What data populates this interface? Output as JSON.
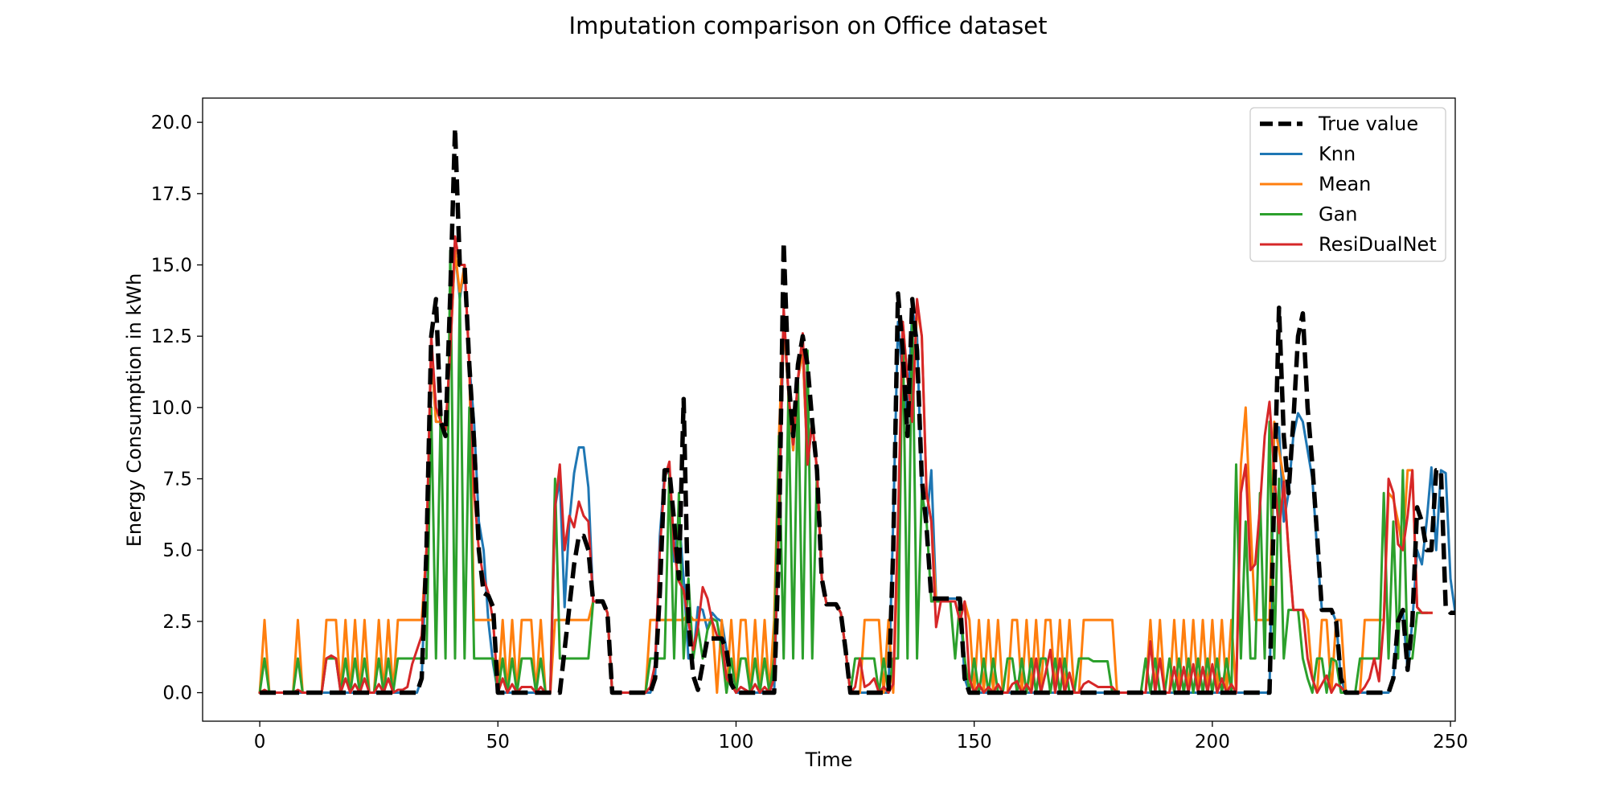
{
  "chart_data": {
    "type": "line",
    "title": "Imputation comparison on Office dataset",
    "xlabel": "Time",
    "ylabel": "Energy Consumption in kWh",
    "xlim": [
      -12,
      251
    ],
    "ylim": [
      -1.0,
      20.85
    ],
    "xticks": [
      0,
      50,
      100,
      150,
      200,
      250
    ],
    "yticks": [
      0.0,
      2.5,
      5.0,
      7.5,
      10.0,
      12.5,
      15.0,
      17.5,
      20.0
    ],
    "xtick_labels": [
      "0",
      "50",
      "100",
      "150",
      "200",
      "250"
    ],
    "ytick_labels": [
      "0.0",
      "2.5",
      "5.0",
      "7.5",
      "10.0",
      "12.5",
      "15.0",
      "17.5",
      "20.0"
    ],
    "grid": false,
    "legend_position": "top-right",
    "series": [
      {
        "name": "True value",
        "color": "#000000",
        "dash": true,
        "width": 5.5,
        "values": [
          0,
          0,
          0,
          0,
          0,
          0,
          0,
          0,
          0,
          0,
          0,
          0,
          0,
          0,
          0,
          0,
          0,
          0,
          0,
          0,
          0,
          0,
          0,
          0,
          0,
          0,
          0,
          0,
          0,
          0,
          0,
          0,
          0,
          0,
          0.5,
          5,
          12.5,
          13.8,
          9.5,
          9,
          14,
          19.8,
          15,
          15,
          11.5,
          8.8,
          5,
          3.5,
          3.4,
          3,
          0,
          0,
          0,
          0,
          0,
          0,
          0,
          0,
          0,
          0,
          0,
          0,
          0,
          0,
          1.5,
          3,
          4.5,
          5.5,
          5.5,
          5,
          3.2,
          3.2,
          3.2,
          2.8,
          0,
          0,
          0,
          0,
          0,
          0,
          0,
          0,
          0,
          0.5,
          3.5,
          7.8,
          7.8,
          6,
          4,
          10.3,
          2.5,
          0.6,
          0.1,
          1,
          1.9,
          1.9,
          1.9,
          1.9,
          1.5,
          0.3,
          0,
          0,
          0,
          0,
          0,
          0,
          0,
          0,
          0,
          5,
          15.8,
          11,
          9,
          11.5,
          12.5,
          11.5,
          9.5,
          7.8,
          4,
          3.1,
          3.1,
          3.1,
          2.8,
          1.5,
          0,
          0,
          0,
          0,
          0,
          0,
          0,
          0,
          0,
          5,
          14,
          12,
          9,
          13.8,
          12,
          7.5,
          5.8,
          3.3,
          3.3,
          3.3,
          3.3,
          3.3,
          3.3,
          3.3,
          0.5,
          0,
          0,
          0,
          0,
          0,
          0,
          0,
          0,
          0,
          0,
          0,
          0,
          0,
          0,
          0,
          0,
          0,
          0,
          0,
          0,
          0,
          0,
          0,
          0,
          0,
          0,
          0,
          0,
          0,
          0,
          0,
          0,
          0,
          0,
          0,
          0,
          0,
          0,
          0,
          0,
          0,
          0,
          0,
          0,
          0,
          0,
          0,
          0,
          0,
          0,
          0,
          0,
          0,
          0,
          0,
          0,
          0,
          0,
          0,
          0,
          0,
          0,
          0,
          0,
          7,
          13.5,
          9,
          7,
          9.5,
          12.5,
          13.3,
          10,
          8,
          5.5,
          2.9,
          2.9,
          2.9,
          2.5,
          0.5,
          0,
          0,
          0,
          0,
          0,
          0,
          0,
          0,
          0,
          0,
          0.5,
          2.5,
          2.9,
          0.8,
          2.5,
          6.5,
          6,
          5,
          5,
          7.8,
          7.8,
          3,
          2.8,
          2.8,
          2.8
        ]
      },
      {
        "name": "Knn",
        "color": "#1f77b4",
        "dash": false,
        "width": 3,
        "values": [
          0,
          0,
          0,
          0,
          0,
          0,
          0,
          0,
          0,
          0,
          0,
          0,
          0,
          0,
          0,
          0,
          0,
          0,
          0,
          0,
          0,
          0,
          0,
          0,
          0,
          0,
          0,
          0,
          0,
          0,
          0,
          0,
          0,
          0,
          0.5,
          5,
          12,
          9.5,
          9.5,
          9.2,
          12,
          15.5,
          13.8,
          15,
          11.5,
          9.5,
          6,
          5,
          2.5,
          1,
          0,
          0,
          0,
          0,
          0,
          0,
          0,
          0,
          0,
          0,
          0,
          0,
          6.5,
          7.5,
          3,
          6,
          7.7,
          8.6,
          8.6,
          7.2,
          3.2,
          3.2,
          3.2,
          2.8,
          0,
          0,
          0,
          0,
          0,
          0,
          0,
          0,
          0,
          0.5,
          5.5,
          7.7,
          7.7,
          4.6,
          6.2,
          4,
          1.2,
          1.2,
          3,
          2.9,
          2.2,
          2.8,
          2.6,
          2.5,
          1.5,
          0.3,
          0,
          0,
          0,
          0,
          0,
          0,
          0,
          0,
          0,
          6,
          13,
          10.5,
          8.5,
          11,
          12,
          8,
          9.5,
          7.8,
          4,
          3.1,
          3.1,
          3.1,
          2.8,
          1.5,
          0,
          0,
          0,
          0,
          0,
          0,
          0,
          0,
          0,
          6,
          13,
          11,
          9.5,
          13.5,
          12.5,
          7,
          6,
          7.8,
          3.3,
          3.3,
          3.3,
          3.3,
          3.3,
          3.3,
          0.5,
          0,
          0,
          0,
          0,
          0,
          0,
          0,
          0,
          0,
          0,
          0,
          0,
          0,
          0,
          0,
          0,
          0,
          0,
          0,
          0,
          0,
          0,
          0,
          0,
          0,
          0,
          0,
          0,
          0,
          0,
          0,
          0,
          0,
          0,
          0,
          0,
          0,
          0,
          0,
          0,
          0,
          0,
          0,
          0,
          0,
          0,
          0,
          0,
          0,
          0,
          0,
          0,
          0,
          0,
          0,
          0,
          0,
          0,
          0,
          0,
          0,
          0,
          0,
          0,
          9.3,
          9.3,
          6,
          7,
          9,
          9.8,
          9.5,
          8.5,
          7.5,
          5,
          2.9,
          2.9,
          2.9,
          2.5,
          0.5,
          0,
          0,
          0,
          0,
          0,
          0,
          0,
          0,
          0,
          0,
          0.5,
          2.5,
          2.9,
          0.8,
          2.5,
          5,
          4.5,
          6,
          7.9,
          5,
          7.8,
          7.7,
          4,
          2.8,
          2.8
        ]
      },
      {
        "name": "Mean",
        "color": "#ff7f0e",
        "dash": false,
        "width": 3,
        "values": [
          0,
          2.55,
          0,
          0,
          0,
          0,
          0,
          0,
          2.55,
          0,
          0,
          0,
          0,
          0,
          2.55,
          2.55,
          2.55,
          0,
          2.55,
          0,
          2.55,
          0,
          2.55,
          0,
          0,
          2.55,
          0,
          2.55,
          0,
          2.55,
          2.55,
          2.55,
          2.55,
          2.55,
          2.55,
          5,
          12,
          9.5,
          9.5,
          9.2,
          12,
          15.5,
          14,
          15,
          11.5,
          2.55,
          2.55,
          2.55,
          2.55,
          2.55,
          0,
          2.55,
          0,
          2.55,
          0,
          2.55,
          2.55,
          2.55,
          0,
          2.55,
          0,
          0,
          2.55,
          2.55,
          2.55,
          2.55,
          2.55,
          2.55,
          2.55,
          2.55,
          3.2,
          3.2,
          3.2,
          2.8,
          0,
          0,
          0,
          0,
          0,
          0,
          0,
          0,
          2.55,
          2.55,
          2.55,
          2.55,
          2.55,
          2.55,
          2.55,
          2.55,
          2.8,
          2.55,
          2.55,
          2.55,
          2.55,
          2.55,
          0,
          2.55,
          0,
          2.55,
          0,
          2.55,
          2.55,
          0,
          2.55,
          0,
          2.55,
          0,
          2.55,
          9,
          13,
          10.5,
          8.5,
          11,
          12,
          8,
          9.5,
          7.8,
          4,
          3.1,
          3.1,
          3.1,
          2.8,
          1.5,
          0,
          0,
          0,
          2.55,
          2.55,
          2.55,
          2.55,
          0,
          2.55,
          0,
          5,
          13,
          11,
          9.5,
          13.5,
          12.5,
          7,
          6,
          3.2,
          3.2,
          3.2,
          3.2,
          3.2,
          2.55,
          3.2,
          2.55,
          0,
          2.55,
          0,
          2.55,
          0,
          2.55,
          0,
          0,
          2.55,
          2.55,
          0,
          2.55,
          0,
          2.55,
          0,
          2.55,
          2.55,
          0,
          2.55,
          0,
          2.55,
          0,
          0,
          2.55,
          2.55,
          2.55,
          2.55,
          2.55,
          2.55,
          2.55,
          0,
          0,
          0,
          0,
          0,
          0,
          0,
          2.55,
          0,
          2.55,
          0,
          0,
          2.55,
          0,
          2.55,
          0,
          2.55,
          0,
          2.55,
          0,
          2.55,
          0,
          2.55,
          0,
          2.55,
          0,
          8,
          10,
          6,
          2.55,
          2.55,
          2.55,
          2.55,
          9.5,
          8.5,
          7.5,
          5,
          2.9,
          2.9,
          2.9,
          2.55,
          0.5,
          0,
          2.55,
          2.55,
          0,
          2.55,
          2.55,
          0,
          0,
          0,
          0,
          2.55,
          2.55,
          2.55,
          2.55,
          2.55,
          7,
          6.8,
          6,
          5,
          7.8,
          7.8,
          3,
          2.8,
          2.8,
          2.8
        ]
      },
      {
        "name": "Gan",
        "color": "#2ca02c",
        "dash": false,
        "width": 3,
        "values": [
          0,
          1.2,
          0,
          0,
          0,
          0,
          0,
          0,
          1.2,
          0,
          0,
          0,
          0,
          0,
          1.2,
          1.2,
          1.2,
          0,
          1.2,
          0,
          1.2,
          0,
          1.2,
          0,
          0,
          1.2,
          0,
          1.2,
          0,
          1.2,
          1.2,
          1.2,
          1.2,
          1.2,
          1.2,
          1.2,
          10,
          1.2,
          10,
          1.2,
          15.5,
          1.2,
          14,
          1.2,
          10,
          1.2,
          1.2,
          1.2,
          1.2,
          1.2,
          0,
          1.2,
          0,
          1.2,
          0,
          1.2,
          1.2,
          1.2,
          0,
          1.2,
          0,
          0,
          7.5,
          1.2,
          1.2,
          1.2,
          1.2,
          1.2,
          1.2,
          1.2,
          3.2,
          3.2,
          3.2,
          2.8,
          0,
          0,
          0,
          0,
          0,
          0,
          0,
          0,
          1.2,
          1.2,
          1.2,
          1.2,
          7.7,
          1.2,
          7,
          1.2,
          4,
          1.2,
          2.3,
          1.2,
          2.2,
          2.6,
          2.5,
          1.5,
          0,
          1.2,
          0,
          1.2,
          1.2,
          0,
          1.2,
          0,
          1.2,
          0,
          1.2,
          9,
          1.2,
          10.5,
          1.2,
          11,
          1.2,
          12,
          1.2,
          7.8,
          4,
          3.1,
          3.1,
          3.1,
          2.8,
          1.5,
          0,
          1.2,
          1.2,
          1.2,
          1.2,
          1.2,
          0,
          1.2,
          0,
          1.2,
          1.2,
          13,
          1.2,
          13.5,
          1.2,
          7,
          6,
          3.2,
          3.2,
          3.2,
          3.2,
          3.2,
          1.2,
          3.2,
          1.2,
          0,
          1.2,
          0,
          1.2,
          0,
          1.2,
          0,
          0,
          1.2,
          1.2,
          0,
          1.2,
          0,
          1.2,
          0,
          1.2,
          1.2,
          0,
          1.2,
          0,
          1.2,
          0,
          0,
          1.2,
          1.2,
          1.2,
          1.1,
          1.1,
          1.1,
          1.1,
          0,
          0,
          0,
          0,
          0,
          0,
          0,
          1.2,
          0,
          1.2,
          0,
          0,
          1.2,
          0,
          1.2,
          0,
          1.2,
          0,
          1.2,
          0,
          1.2,
          0,
          1.2,
          0,
          1.2,
          0,
          8,
          1.2,
          6,
          1.2,
          1.2,
          7,
          1.2,
          9.5,
          1.2,
          7.5,
          1.2,
          2.9,
          2.9,
          2.9,
          1.2,
          0.5,
          0,
          1.2,
          1.2,
          0,
          1.2,
          1.1,
          0,
          0,
          0,
          0,
          1.2,
          1.2,
          1.2,
          1.2,
          1.2,
          7,
          1.2,
          6,
          1.2,
          7.8,
          1.2,
          1.2,
          2.8,
          2.8,
          2.8
        ]
      },
      {
        "name": "ResiDualNet",
        "color": "#d62728",
        "dash": false,
        "width": 3,
        "values": [
          0,
          0.1,
          0,
          0,
          0,
          0,
          0,
          0,
          0.1,
          0,
          0,
          0,
          0,
          0,
          1.2,
          1.3,
          1.2,
          0,
          0.5,
          0,
          0.3,
          0,
          0.5,
          0,
          0,
          0.3,
          0,
          0.5,
          0,
          0.1,
          0.1,
          0.2,
          1,
          1.5,
          2,
          5,
          12.5,
          10,
          9.5,
          9.2,
          12,
          16,
          15,
          15,
          11.5,
          7,
          5,
          4,
          3.5,
          2.5,
          0,
          0.5,
          0,
          0.3,
          0,
          0.2,
          0.2,
          0.2,
          0,
          0.2,
          0,
          0,
          6.5,
          8,
          5,
          6.2,
          5.8,
          6.7,
          6.2,
          6,
          3.2,
          3.2,
          3.2,
          2.8,
          0,
          0,
          0,
          0,
          0,
          0,
          0,
          0,
          0.2,
          1,
          5,
          7.5,
          8.1,
          5,
          3.9,
          3.6,
          2.5,
          1.5,
          2.3,
          3.7,
          3.3,
          2.5,
          2,
          1.9,
          0.5,
          0.3,
          0,
          0.2,
          0.1,
          0,
          0.3,
          0,
          0.2,
          0,
          0.5,
          6,
          13.5,
          10.5,
          8.7,
          11,
          12.6,
          8,
          9.5,
          7.8,
          4,
          3.1,
          3.1,
          3.1,
          2.8,
          1.5,
          0,
          0.2,
          1.2,
          0.2,
          0.3,
          0.5,
          0,
          0.2,
          0,
          0.3,
          6,
          13,
          11,
          9.5,
          13.8,
          12.5,
          7,
          6,
          2.3,
          3.2,
          3.2,
          3.2,
          3.2,
          2.5,
          3.2,
          0.5,
          0,
          0.3,
          0,
          0.2,
          0,
          0.3,
          0,
          0,
          0.3,
          0.4,
          0,
          0.3,
          0,
          1.2,
          0,
          0.7,
          1.5,
          0,
          1.2,
          0,
          0.7,
          0,
          0,
          0.3,
          0.4,
          0.3,
          0.2,
          0.2,
          0.2,
          0.2,
          0,
          0,
          0,
          0,
          0,
          0,
          0,
          1.8,
          0,
          1.2,
          0,
          0,
          0.9,
          0,
          0.9,
          0,
          1,
          0,
          0.9,
          0,
          1,
          0,
          0.5,
          0,
          0.3,
          0,
          7,
          8,
          4.3,
          4.5,
          6.5,
          9,
          10.2,
          7.7,
          5.6,
          7.4,
          5,
          2.9,
          2.9,
          2.9,
          1.2,
          0.5,
          0,
          0.3,
          0.6,
          0,
          0.3,
          0.2,
          0,
          0,
          0,
          0,
          0.2,
          0.5,
          1.2,
          0.4,
          2.5,
          7.5,
          7,
          5.2,
          5,
          6.2,
          7.8,
          3,
          2.8,
          2.8,
          2.8
        ]
      }
    ]
  }
}
